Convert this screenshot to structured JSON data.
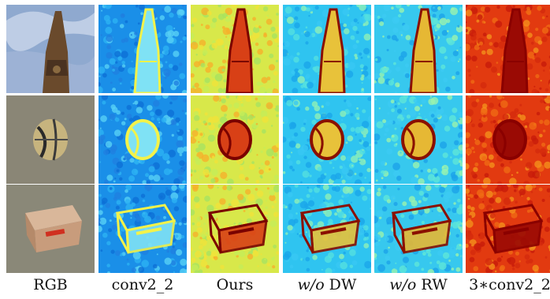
{
  "figure": {
    "columns": [
      {
        "id": "rgb",
        "label": "RGB",
        "kind": "photo"
      },
      {
        "id": "conv22",
        "label": "conv2_2",
        "kind": "blue"
      },
      {
        "id": "ours",
        "label": "Ours",
        "kind": "yellow"
      },
      {
        "id": "wodw",
        "label_em": "w/o",
        "label_rest": " DW",
        "kind": "cyan"
      },
      {
        "id": "worw",
        "label_em": "w/o",
        "label_rest": " RW",
        "kind": "cyan2"
      },
      {
        "id": "conv22x3",
        "label": "3∗conv2_2",
        "kind": "red"
      }
    ],
    "rows": [
      {
        "id": "tower",
        "object": "spire"
      },
      {
        "id": "ball",
        "object": "ball"
      },
      {
        "id": "box",
        "object": "box"
      }
    ],
    "colors": {
      "blue_bg": "#1a8fe8",
      "cyan_bg": "#2fc4f0",
      "yellow_bg": "#d8e84a",
      "red_bg": "#e23a10",
      "dark_red": "#8a0000",
      "sky": "#8fa9cf"
    }
  }
}
